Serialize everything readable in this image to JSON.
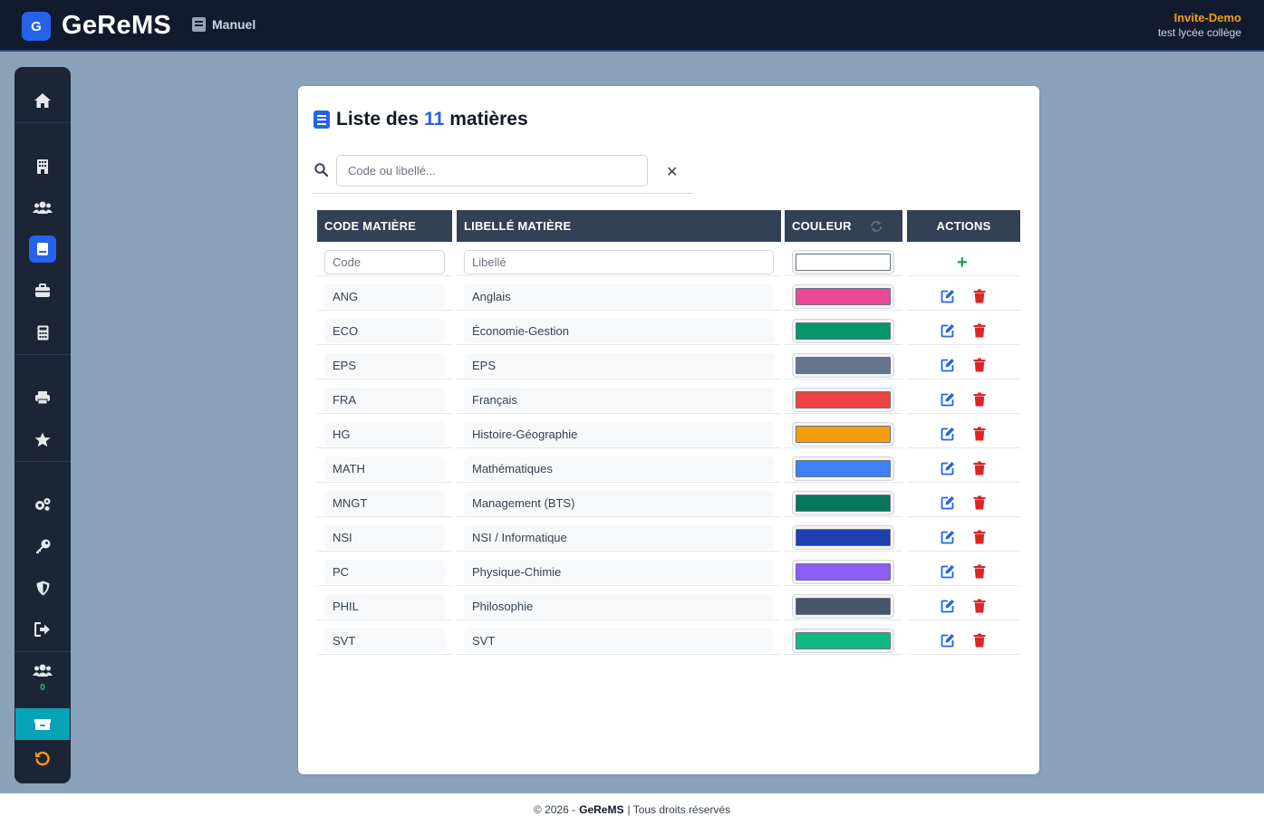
{
  "header": {
    "logo_letter": "G",
    "brand": "GeReMS",
    "manual_label": "Manuel",
    "user_name": "Invite-Demo",
    "school": "test lycée collège"
  },
  "sidebar": {
    "online_count": "0",
    "items": [
      "home-icon",
      "building-icon",
      "users-icon",
      "book-icon",
      "briefcase-icon",
      "calculator-icon",
      "print-icon",
      "star-icon",
      "cogs-icon",
      "key-icon",
      "shield-icon",
      "logout-icon",
      "users-online-icon",
      "box-icon",
      "undo-icon"
    ]
  },
  "page": {
    "title_prefix": "Liste des",
    "title_count": "11",
    "title_suffix": "matières",
    "search_placeholder": "Code ou libellé...",
    "clear_label": "✕"
  },
  "table": {
    "headers": {
      "code": "CODE MATIÈRE",
      "libelle": "LIBELLÉ MATIÈRE",
      "couleur": "COULEUR",
      "actions": "ACTIONS"
    },
    "new_row": {
      "code_placeholder": "Code",
      "libelle_placeholder": "Libellé",
      "color": "#ffffff",
      "add_label": "+"
    },
    "rows": [
      {
        "code": "ANG",
        "libelle": "Anglais",
        "color": "#ec4899"
      },
      {
        "code": "ECO",
        "libelle": "Économie-Gestion",
        "color": "#059669"
      },
      {
        "code": "EPS",
        "libelle": "EPS",
        "color": "#64748b"
      },
      {
        "code": "FRA",
        "libelle": "Français",
        "color": "#ef4444"
      },
      {
        "code": "HG",
        "libelle": "Histoire-Géographie",
        "color": "#f59e0b"
      },
      {
        "code": "MATH",
        "libelle": "Mathématiques",
        "color": "#3b82f6"
      },
      {
        "code": "MNGT",
        "libelle": "Management (BTS)",
        "color": "#047857"
      },
      {
        "code": "NSI",
        "libelle": "NSI / Informatique",
        "color": "#1e40af"
      },
      {
        "code": "PC",
        "libelle": "Physique-Chimie",
        "color": "#8b5cf6"
      },
      {
        "code": "PHIL",
        "libelle": "Philosophie",
        "color": "#475569"
      },
      {
        "code": "SVT",
        "libelle": "SVT",
        "color": "#10b981"
      }
    ]
  },
  "footer": {
    "copyright": "© 2026 -",
    "brand": "GeReMS",
    "rights": "| Tous droits réservés"
  },
  "colors": {
    "accent": "#2563eb",
    "header_bg": "#121b2e",
    "table_header_bg": "#334155",
    "delete": "#dc2626",
    "user_name": "#f59e0b"
  }
}
